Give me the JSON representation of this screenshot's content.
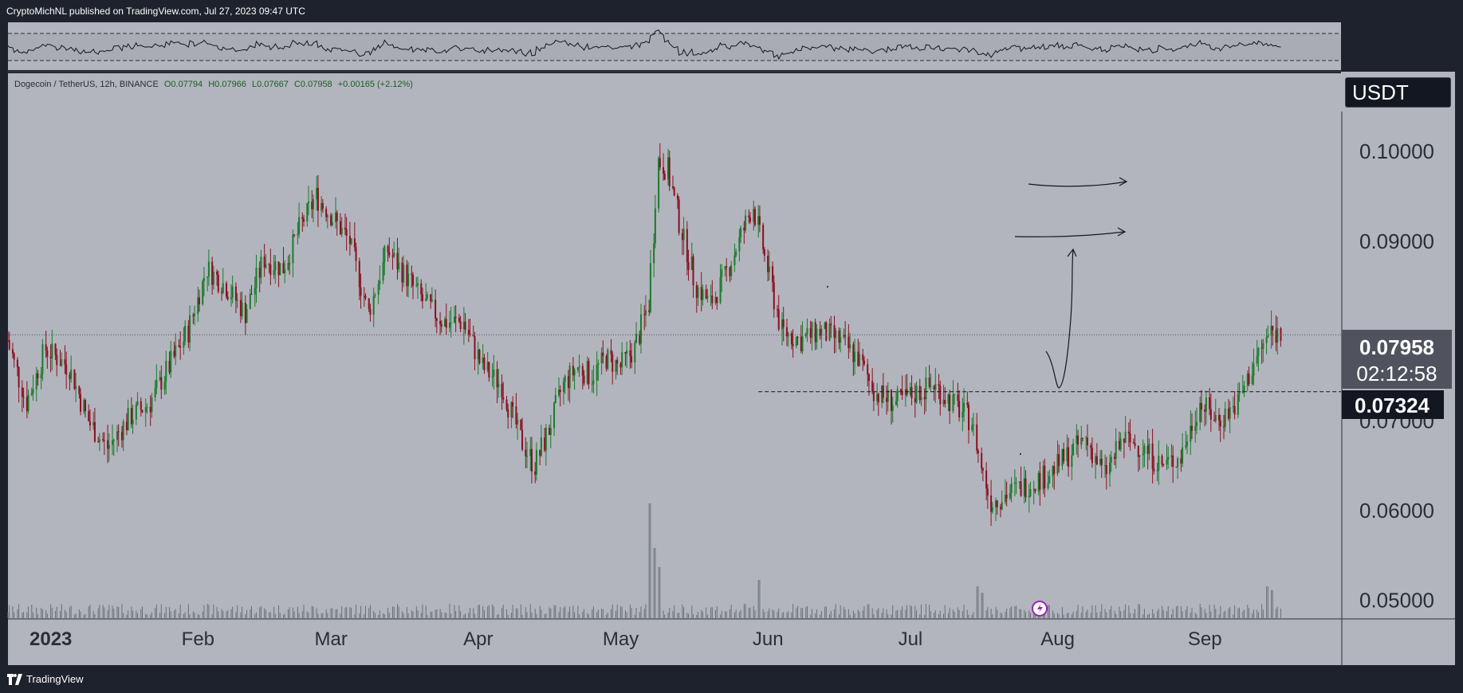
{
  "header": {
    "published_text": "CryptoMichNL published on TradingView.com, Jul 27, 2023 09:47 UTC"
  },
  "footer": {
    "brand": "TradingView"
  },
  "legend": {
    "symbol": "Dogecoin / TetherUS, 12h, BINANCE",
    "open": "O0.07794",
    "high": "H0.07966",
    "low": "L0.07667",
    "close": "C0.07958",
    "change": "+0.00165 (+2.12%)"
  },
  "currency_label": "USDT",
  "price_axis": {
    "ticks": [
      "0.10000",
      "0.09000",
      "0.07000",
      "0.06000",
      "0.05000"
    ],
    "current_price": "0.07958",
    "countdown": "02:12:58",
    "marked_level": "0.07324"
  },
  "time_axis": {
    "ticks": [
      "2023",
      "Feb",
      "Mar",
      "Apr",
      "May",
      "Jun",
      "Jul",
      "Aug",
      "Sep"
    ]
  },
  "colors": {
    "pane_bg": "#b2b5be",
    "up_candle": "#1b7a2a",
    "down_candle": "#8b0f1f",
    "volume": "#6a6e78",
    "line": "#131722"
  },
  "chart_data": {
    "type": "candlestick",
    "symbol": "Dogecoin / TetherUS",
    "interval": "12h",
    "exchange": "BINANCE",
    "ylim": [
      0.049,
      0.108
    ],
    "x_range": [
      "2022-12-25",
      "2023-09-30"
    ],
    "y_ticks": [
      0.1,
      0.09,
      0.07,
      0.06,
      0.05
    ],
    "x_ticks": [
      "2023",
      "Feb",
      "Mar",
      "Apr",
      "May",
      "Jun",
      "Jul",
      "Aug",
      "Sep"
    ],
    "horizontal_line": 0.07324,
    "current_price": 0.07958,
    "close_path": [
      [
        "2022-12-25",
        0.079
      ],
      [
        "2022-12-29",
        0.072
      ],
      [
        "2023-01-02",
        0.078
      ],
      [
        "2023-01-07",
        0.076
      ],
      [
        "2023-01-11",
        0.07
      ],
      [
        "2023-01-15",
        0.067
      ],
      [
        "2023-01-20",
        0.0705
      ],
      [
        "2023-01-24",
        0.072
      ],
      [
        "2023-01-28",
        0.076
      ],
      [
        "2023-02-01",
        0.08
      ],
      [
        "2023-02-05",
        0.087
      ],
      [
        "2023-02-09",
        0.085
      ],
      [
        "2023-02-13",
        0.082
      ],
      [
        "2023-02-17",
        0.088
      ],
      [
        "2023-02-21",
        0.087
      ],
      [
        "2023-02-25",
        0.092
      ],
      [
        "2023-02-28",
        0.095
      ],
      [
        "2023-03-03",
        0.093
      ],
      [
        "2023-03-07",
        0.09
      ],
      [
        "2023-03-11",
        0.082
      ],
      [
        "2023-03-15",
        0.089
      ],
      [
        "2023-03-19",
        0.086
      ],
      [
        "2023-03-23",
        0.083
      ],
      [
        "2023-03-27",
        0.081
      ],
      [
        "2023-03-31",
        0.081
      ],
      [
        "2023-04-04",
        0.076
      ],
      [
        "2023-04-08",
        0.074
      ],
      [
        "2023-04-12",
        0.068
      ],
      [
        "2023-04-15",
        0.065
      ],
      [
        "2023-04-18",
        0.069
      ],
      [
        "2023-04-21",
        0.074
      ],
      [
        "2023-04-24",
        0.076
      ],
      [
        "2023-04-27",
        0.075
      ],
      [
        "2023-04-30",
        0.077
      ],
      [
        "2023-05-03",
        0.076
      ],
      [
        "2023-05-06",
        0.078
      ],
      [
        "2023-05-09",
        0.083
      ],
      [
        "2023-05-11",
        0.099
      ],
      [
        "2023-05-13",
        0.098
      ],
      [
        "2023-05-16",
        0.091
      ],
      [
        "2023-05-19",
        0.085
      ],
      [
        "2023-05-22",
        0.083
      ],
      [
        "2023-05-25",
        0.086
      ],
      [
        "2023-05-28",
        0.09
      ],
      [
        "2023-05-31",
        0.094
      ],
      [
        "2023-06-03",
        0.087
      ],
      [
        "2023-06-06",
        0.08
      ],
      [
        "2023-06-10",
        0.079
      ],
      [
        "2023-06-14",
        0.08
      ],
      [
        "2023-06-18",
        0.079
      ],
      [
        "2023-06-22",
        0.077
      ],
      [
        "2023-06-26",
        0.073
      ],
      [
        "2023-06-30",
        0.072
      ],
      [
        "2023-07-04",
        0.073
      ],
      [
        "2023-07-08",
        0.074
      ],
      [
        "2023-07-12",
        0.072
      ],
      [
        "2023-07-16",
        0.07
      ],
      [
        "2023-07-18",
        0.065
      ],
      [
        "2023-07-20",
        0.061
      ],
      [
        "2023-07-24",
        0.062
      ],
      [
        "2023-07-28",
        0.063
      ],
      [
        "2023-08-01",
        0.064
      ],
      [
        "2023-08-05",
        0.066
      ],
      [
        "2023-08-09",
        0.068
      ],
      [
        "2023-08-13",
        0.064
      ],
      [
        "2023-08-17",
        0.068
      ],
      [
        "2023-08-21",
        0.067
      ],
      [
        "2023-08-25",
        0.065
      ],
      [
        "2023-08-29",
        0.066
      ],
      [
        "2023-09-02",
        0.072
      ],
      [
        "2023-09-06",
        0.07
      ],
      [
        "2023-09-10",
        0.072
      ],
      [
        "2023-09-14",
        0.077
      ],
      [
        "2023-09-17",
        0.08
      ],
      [
        "2023-09-19",
        0.0796
      ]
    ],
    "volume_spikes": [
      [
        "2023-05-09",
        0.9
      ],
      [
        "2023-05-10",
        0.55
      ],
      [
        "2023-05-11",
        0.4
      ],
      [
        "2023-06-01",
        0.3
      ],
      [
        "2023-07-17",
        0.25
      ],
      [
        "2023-07-18",
        0.2
      ],
      [
        "2023-09-16",
        0.25
      ],
      [
        "2023-09-17",
        0.22
      ]
    ],
    "oscillator_range": "between dashed bands"
  }
}
